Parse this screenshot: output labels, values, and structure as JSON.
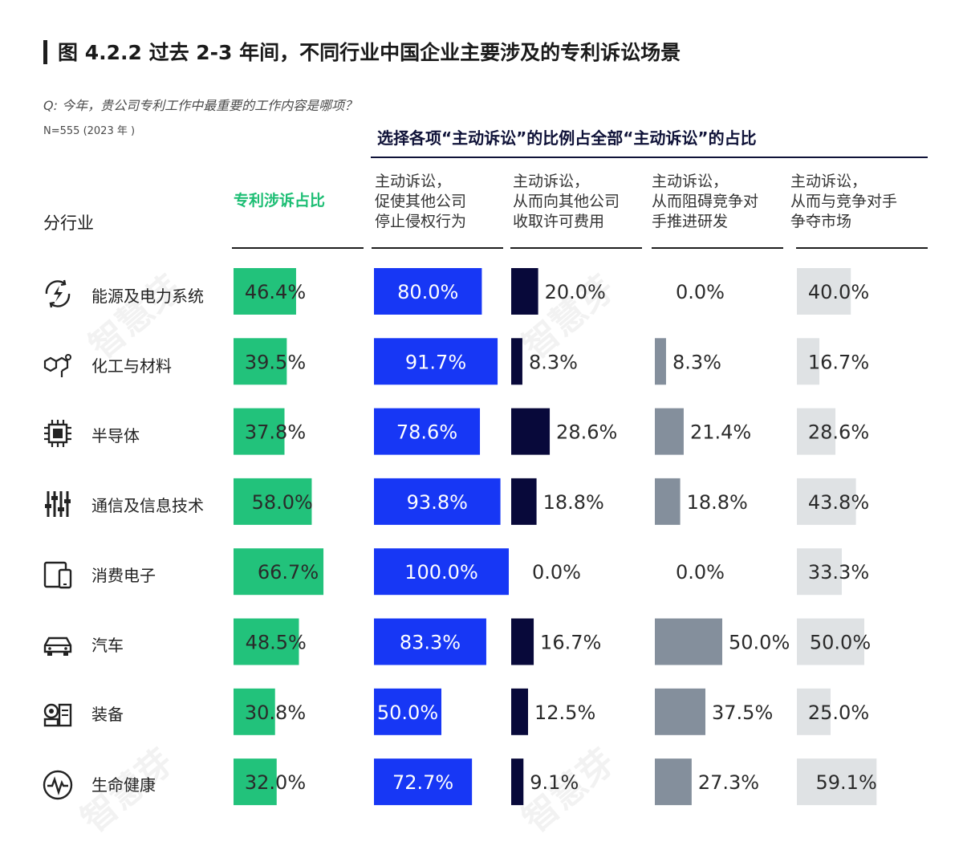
{
  "title": "图 4.2.2 过去 2-3 年间，不同行业中国企业主要涉及的专利诉讼场景",
  "question": "Q: 今年，贵公司专利工作中最重要的工作内容是哪项？",
  "sample": "N=555 (2023 年 )",
  "group_header": "选择各项“主动诉讼”的比例占全部“主动诉讼”的占比",
  "row_header": "分行业",
  "watermark": "智慧芽",
  "colors": {
    "green": "#22c27b",
    "blue": "#1737f5",
    "navy": "#08093a",
    "gray": "#848f9c",
    "light": "#dfe2e4",
    "text_white": "#ffffff",
    "text_dark": "#2a2a2a"
  },
  "chart_data": {
    "type": "table",
    "columns": [
      {
        "key": "share",
        "label": "专利涉诉占比",
        "color": "#22c27b",
        "text": "dark"
      },
      {
        "key": "stop",
        "label": "主动诉讼，\n促使其他公司\n停止侵权行为",
        "color": "#1737f5",
        "text": "light"
      },
      {
        "key": "license",
        "label": "主动诉讼，\n从而向其他公司\n收取许可费用",
        "color": "#08093a",
        "text": "dark"
      },
      {
        "key": "block",
        "label": "主动诉讼，\n从而阻碍竞争对\n手推进研发",
        "color": "#848f9c",
        "text": "dark"
      },
      {
        "key": "market",
        "label": "主动诉讼，\n从而与竞争对手\n争夺市场",
        "color": "#dfe2e4",
        "text": "dark"
      }
    ],
    "rows": [
      {
        "industry": "能源及电力系统",
        "icon": "lightning-cycle-icon",
        "values": [
          46.4,
          80.0,
          20.0,
          0.0,
          40.0
        ],
        "labels": [
          "46.4%",
          "80.0%",
          "20.0%",
          "0.0%",
          "40.0%"
        ]
      },
      {
        "industry": "化工与材料",
        "icon": "molecule-icon",
        "values": [
          39.5,
          91.7,
          8.3,
          8.3,
          16.7
        ],
        "labels": [
          "39.5%",
          "91.7%",
          "8.3%",
          "8.3%",
          "16.7%"
        ]
      },
      {
        "industry": "半导体",
        "icon": "chip-icon",
        "values": [
          37.8,
          78.6,
          28.6,
          21.4,
          28.6
        ],
        "labels": [
          "37.8%",
          "78.6%",
          "28.6%",
          "21.4%",
          "28.6%"
        ]
      },
      {
        "industry": "通信及信息技术",
        "icon": "sliders-icon",
        "values": [
          58.0,
          93.8,
          18.8,
          18.8,
          43.8
        ],
        "labels": [
          "58.0%",
          "93.8%",
          "18.8%",
          "18.8%",
          "43.8%"
        ]
      },
      {
        "industry": "消费电子",
        "icon": "devices-icon",
        "values": [
          66.7,
          100.0,
          0.0,
          0.0,
          33.3
        ],
        "labels": [
          "66.7%",
          "100.0%",
          "0.0%",
          "0.0%",
          "33.3%"
        ]
      },
      {
        "industry": "汽车",
        "icon": "car-icon",
        "values": [
          48.5,
          83.3,
          16.7,
          50.0,
          50.0
        ],
        "labels": [
          "48.5%",
          "83.3%",
          "16.7%",
          "50.0%",
          "50.0%"
        ]
      },
      {
        "industry": "装备",
        "icon": "equipment-icon",
        "values": [
          30.8,
          50.0,
          12.5,
          37.5,
          25.0
        ],
        "labels": [
          "30.8%",
          "50.0%",
          "12.5%",
          "37.5%",
          "25.0%"
        ]
      },
      {
        "industry": "生命健康",
        "icon": "heartbeat-icon",
        "values": [
          32.0,
          72.7,
          9.1,
          27.3,
          59.1
        ],
        "labels": [
          "32.0%",
          "72.7%",
          "9.1%",
          "27.3%",
          "59.1%"
        ]
      }
    ]
  }
}
